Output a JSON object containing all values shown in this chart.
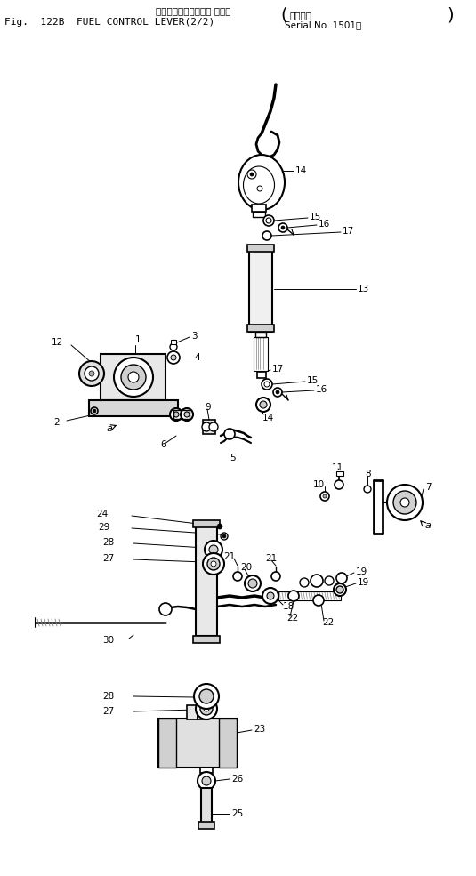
{
  "title_jp": "フェエルコントロール レバー",
  "title_en": "Fig.  122B  FUEL CONTROL LEVER(2/2)",
  "serial_label1": "適用号機",
  "serial_label2": "Serial No. 1501～",
  "bg_color": "#ffffff",
  "fg_color": "#000000",
  "fig_width": 5.35,
  "fig_height": 9.85
}
